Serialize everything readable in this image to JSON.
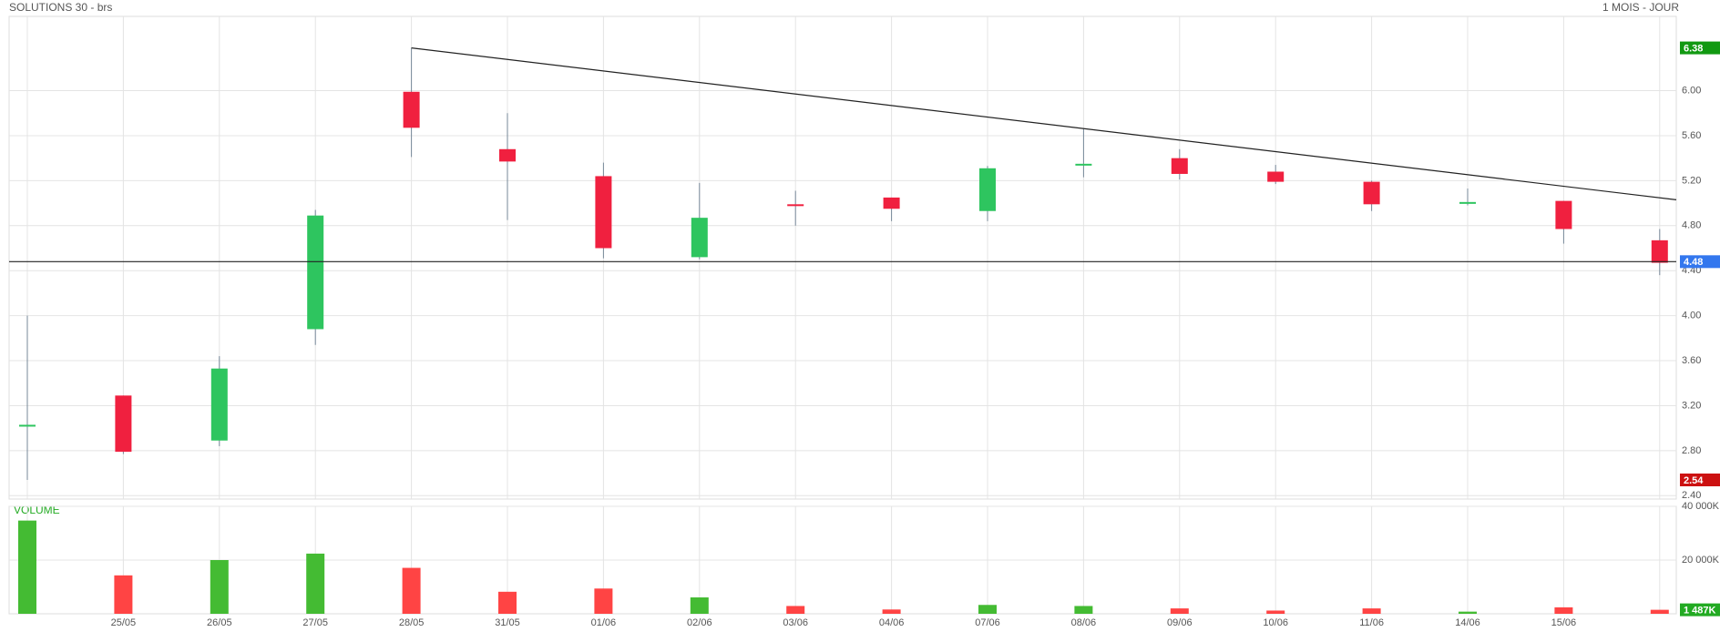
{
  "chart_data": [
    {
      "type": "candlestick",
      "title": "SOLUTIONS 30 - brs",
      "subtitle": "1 MOIS - JOUR",
      "categories": [
        null,
        "25/05",
        "26/05",
        "27/05",
        "28/05",
        "31/05",
        "01/06",
        "02/06",
        "03/06",
        "04/06",
        "07/06",
        "08/06",
        "09/06",
        "10/06",
        "11/06",
        "14/06",
        "15/06",
        null
      ],
      "open": [
        3.02,
        3.29,
        2.89,
        3.88,
        5.99,
        5.48,
        5.24,
        4.52,
        4.99,
        5.05,
        4.93,
        5.34,
        5.4,
        5.28,
        5.19,
        5.0,
        5.02,
        4.67
      ],
      "high": [
        4.0,
        3.29,
        3.64,
        4.94,
        6.38,
        5.8,
        5.36,
        5.18,
        5.11,
        5.05,
        5.33,
        5.66,
        5.48,
        5.34,
        5.2,
        5.13,
        5.02,
        4.77
      ],
      "low": [
        2.54,
        2.77,
        2.84,
        3.74,
        5.41,
        4.85,
        4.51,
        4.5,
        4.8,
        4.84,
        4.84,
        5.23,
        5.21,
        5.17,
        4.93,
        4.98,
        4.64,
        4.36
      ],
      "close": [
        3.03,
        2.79,
        3.53,
        4.89,
        5.67,
        5.37,
        4.6,
        4.87,
        4.98,
        4.95,
        5.31,
        5.35,
        5.26,
        5.19,
        4.99,
        5.01,
        4.77,
        4.47
      ],
      "up_color": "#2ec55f",
      "down_color": "#f0203f",
      "ylim": [
        2.37,
        6.66
      ],
      "yticks": [
        {
          "value": 2.4,
          "label": "2.40"
        },
        {
          "value": 2.8,
          "label": "2.80"
        },
        {
          "value": 3.2,
          "label": "3.20"
        },
        {
          "value": 3.6,
          "label": "3.60"
        },
        {
          "value": 4.0,
          "label": "4.00"
        },
        {
          "value": 4.4,
          "label": "4.40"
        },
        {
          "value": 4.8,
          "label": "4.80"
        },
        {
          "value": 5.2,
          "label": "5.20"
        },
        {
          "value": 5.6,
          "label": "5.60"
        },
        {
          "value": 6.0,
          "label": "6.00"
        }
      ],
      "grid": true,
      "trendline": [
        6.38,
        5.03
      ],
      "markers": [
        {
          "value": 6.38,
          "label": "6.38",
          "color": "#119911"
        },
        {
          "value": 4.48,
          "label": "4.48",
          "color": "#3377ee"
        },
        {
          "value": 2.54,
          "label": "2.54",
          "color": "#cc1111"
        }
      ],
      "hline": 4.48
    },
    {
      "type": "bar",
      "title": "VOLUME",
      "values": [
        34700,
        14300,
        20000,
        22400,
        17100,
        8200,
        9400,
        6100,
        2900,
        1600,
        3300,
        2900,
        2000,
        1200,
        2000,
        800,
        2400,
        1487
      ],
      "up_color": "#44bb33",
      "down_color": "#ff4444",
      "ylim": [
        0,
        40000
      ],
      "yticks": [
        {
          "value": 20000,
          "label": "20 000K"
        },
        {
          "value": 40000,
          "label": "40 000K"
        }
      ],
      "grid": true,
      "markers": [
        {
          "value": 1487,
          "label": "1 487K",
          "color": "#22aa22"
        }
      ]
    }
  ]
}
